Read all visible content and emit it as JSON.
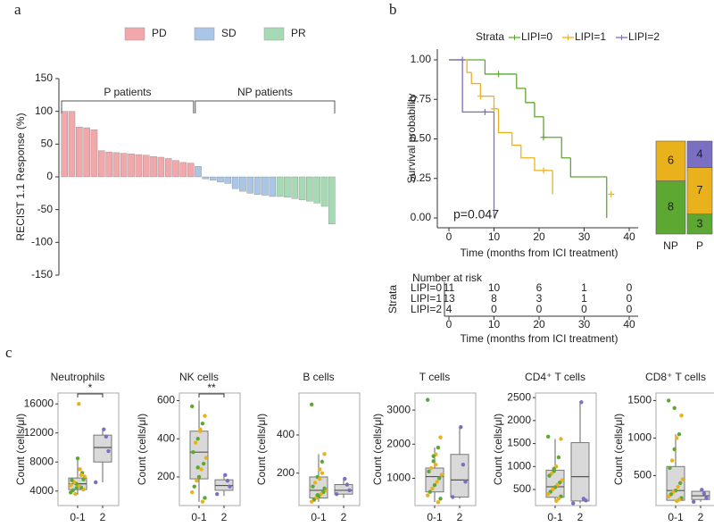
{
  "chart_data": [
    {
      "type": "bar",
      "panel_label": "a",
      "ylabel": "RECIST 1.1 Response (%)",
      "ylim": [
        -150,
        150
      ],
      "yticks": [
        -150,
        -100,
        -50,
        0,
        50,
        100,
        150
      ],
      "annotations": [
        "P patients",
        "NP patients"
      ],
      "categories": [
        null,
        null,
        null,
        null,
        null,
        null,
        null,
        null,
        null,
        null,
        null,
        null,
        null,
        null,
        null,
        null,
        null,
        null,
        null,
        null,
        null,
        null,
        null,
        null,
        null,
        null,
        null,
        null,
        null,
        null,
        null,
        null,
        null,
        null,
        null,
        null,
        null
      ],
      "series": [
        {
          "name": "PD",
          "color": "#f2a7aa",
          "values": [
            100,
            100,
            76,
            75,
            72,
            40,
            38,
            37,
            36,
            35,
            34,
            33,
            31,
            30,
            28,
            25,
            22,
            21,
            null,
            null,
            null,
            null,
            null,
            null,
            null,
            null,
            null,
            null,
            null,
            null,
            null,
            null,
            null,
            null,
            null,
            null,
            null
          ]
        },
        {
          "name": "SD",
          "color": "#a9c6e6",
          "values": [
            null,
            null,
            null,
            null,
            null,
            null,
            null,
            null,
            null,
            null,
            null,
            null,
            null,
            null,
            null,
            null,
            null,
            null,
            16,
            -3,
            -5,
            -8,
            -10,
            -18,
            -22,
            -25,
            -27,
            -28,
            -30,
            null,
            null,
            null,
            null,
            null,
            null,
            null,
            null
          ]
        },
        {
          "name": "PR",
          "color": "#a6dab4",
          "values": [
            null,
            null,
            null,
            null,
            null,
            null,
            null,
            null,
            null,
            null,
            null,
            null,
            null,
            null,
            null,
            null,
            null,
            null,
            null,
            null,
            null,
            null,
            null,
            null,
            null,
            null,
            null,
            null,
            null,
            -30,
            -31,
            -33,
            -35,
            -37,
            -40,
            -45,
            -72
          ]
        }
      ]
    },
    {
      "type": "step",
      "panel_label": "b",
      "legend_title": "Strata",
      "ylabel": "Survival probability",
      "xlabel": "Time (months from ICI treatment)",
      "annotation": "p=0.047",
      "xlim": [
        0,
        40
      ],
      "xticks": [
        0,
        10,
        20,
        30,
        40
      ],
      "ylim": [
        0,
        1
      ],
      "yticks": [
        {
          "value": 0,
          "label": "0.00"
        },
        {
          "value": 0.25,
          "label": "0.25"
        },
        {
          "value": 0.5,
          "label": "0.50"
        },
        {
          "value": 0.75,
          "label": "0.75"
        },
        {
          "value": 1,
          "label": "1.00"
        }
      ],
      "series": [
        {
          "name": "LIPI=0",
          "color": "#5da832",
          "x": [
            0,
            8,
            15,
            17,
            19,
            21,
            25,
            27,
            35
          ],
          "values": [
            1,
            0.91,
            0.82,
            0.73,
            0.64,
            0.51,
            0.38,
            0.26,
            0
          ],
          "censored_x": [
            11,
            21
          ],
          "censored_values": [
            0.91,
            0.51
          ]
        },
        {
          "name": "LIPI=1",
          "color": "#e9b21d",
          "x": [
            0,
            4,
            5,
            7,
            10,
            11,
            14,
            16,
            19,
            23
          ],
          "values": [
            1,
            0.92,
            0.85,
            0.77,
            0.69,
            0.54,
            0.46,
            0.38,
            0.3,
            0.15
          ],
          "censored_x": [
            7,
            10,
            21,
            36
          ],
          "censored_values": [
            0.77,
            0.69,
            0.3,
            0.15
          ]
        },
        {
          "name": "LIPI=2",
          "color": "#7a6fc0",
          "x": [
            0,
            3,
            10
          ],
          "values": [
            1,
            0.67,
            0
          ],
          "censored_x": [
            3,
            8
          ],
          "censored_values": [
            1,
            0.67
          ]
        }
      ],
      "risk_table": {
        "title": "Number at risk",
        "ylabel": "Strata",
        "xlabel": "Time (months from ICI treatment)",
        "rows": [
          [
            11,
            10,
            6,
            1,
            0
          ],
          [
            13,
            8,
            3,
            1,
            0
          ],
          [
            4,
            0,
            0,
            0,
            0
          ]
        ]
      }
    },
    {
      "type": "bar",
      "stacked": true,
      "categories": [
        "NP",
        "P"
      ],
      "series": [
        {
          "color": "#5da832",
          "values": [
            8,
            3
          ]
        },
        {
          "color": "#e9b21d",
          "values": [
            6,
            7
          ]
        },
        {
          "color": "#7a6fc0",
          "values": [
            null,
            4
          ]
        }
      ]
    },
    {
      "type": "box",
      "panel_label": "c",
      "title": "Neutrophils",
      "ylabel": "Count (cells/μl)",
      "ylim": [
        2000,
        17500
      ],
      "yticks": [
        4000,
        8000,
        12000,
        16000
      ],
      "significance": "*",
      "groups": [
        {
          "category": "0-1",
          "min": 3500,
          "q1": 4200,
          "median": 5000,
          "q3": 5800,
          "max": 8500,
          "points": [
            3800,
            4200,
            4500,
            4700,
            5000,
            5200,
            5500,
            6000,
            6500,
            7000,
            8500,
            3600,
            4100,
            4800,
            5600,
            6200,
            16000,
            4400
          ],
          "point_colors": [
            "#5da832",
            "#e9b21d",
            "#5da832",
            "#e9b21d",
            "#5da832",
            "#e9b21d",
            "#5da832",
            "#e9b21d",
            "#5da832",
            "#e9b21d",
            "#5da832",
            "#e9b21d",
            "#5da832",
            "#e9b21d",
            "#5da832",
            "#e9b21d",
            "#e9b21d",
            "#5da832"
          ]
        },
        {
          "category": "2",
          "min": 5200,
          "q1": 8000,
          "median": 10000,
          "q3": 11700,
          "max": 12500,
          "points": [
            5200,
            9500,
            11500,
            12500
          ],
          "point_colors": [
            "#7a6fc0",
            "#7a6fc0",
            "#7a6fc0",
            "#7a6fc0"
          ]
        }
      ]
    },
    {
      "type": "box",
      "title": "NK cells",
      "ylabel": "Count (cells/μl)",
      "ylim": [
        50,
        640
      ],
      "yticks": [
        200,
        400,
        600
      ],
      "significance": "**",
      "groups": [
        {
          "category": "0-1",
          "min": 70,
          "q1": 190,
          "median": 330,
          "q3": 440,
          "max": 600,
          "points": [
            570,
            520,
            480,
            440,
            400,
            380,
            330,
            300,
            270,
            240,
            200,
            180,
            150,
            120,
            90,
            70,
            450,
            250
          ],
          "point_colors": [
            "#5da832",
            "#e9b21d",
            "#5da832",
            "#e9b21d",
            "#5da832",
            "#e9b21d",
            "#5da832",
            "#e9b21d",
            "#5da832",
            "#e9b21d",
            "#5da832",
            "#e9b21d",
            "#5da832",
            "#e9b21d",
            "#5da832",
            "#e9b21d",
            "#e9b21d",
            "#5da832"
          ]
        },
        {
          "category": "2",
          "min": 100,
          "q1": 130,
          "median": 155,
          "q3": 185,
          "max": 210,
          "points": [
            110,
            150,
            180,
            210
          ],
          "point_colors": [
            "#7a6fc0",
            "#7a6fc0",
            "#7a6fc0",
            "#7a6fc0"
          ]
        }
      ]
    },
    {
      "type": "box",
      "title": "B cells",
      "ylabel": "Count (cells/μl)",
      "ylim": [
        30,
        620
      ],
      "yticks": [
        200,
        400
      ],
      "groups": [
        {
          "category": "0-1",
          "min": 50,
          "q1": 70,
          "median": 110,
          "q3": 180,
          "max": 300,
          "points": [
            560,
            300,
            260,
            220,
            180,
            150,
            130,
            110,
            100,
            90,
            80,
            70,
            60,
            50,
            120,
            200,
            170,
            85
          ],
          "point_colors": [
            "#5da832",
            "#e9b21d",
            "#5da832",
            "#e9b21d",
            "#5da832",
            "#e9b21d",
            "#5da832",
            "#e9b21d",
            "#5da832",
            "#e9b21d",
            "#5da832",
            "#e9b21d",
            "#5da832",
            "#e9b21d",
            "#5da832",
            "#e9b21d",
            "#e9b21d",
            "#5da832"
          ]
        },
        {
          "category": "2",
          "min": 70,
          "q1": 90,
          "median": 110,
          "q3": 140,
          "max": 170,
          "points": [
            90,
            110,
            140,
            170
          ],
          "point_colors": [
            "#7a6fc0",
            "#7a6fc0",
            "#7a6fc0",
            "#7a6fc0"
          ]
        }
      ]
    },
    {
      "type": "box",
      "title": "T cells",
      "ylabel": "Count (cells/μl)",
      "ylim": [
        200,
        3500
      ],
      "yticks": [
        1000,
        2000,
        3000
      ],
      "groups": [
        {
          "category": "0-1",
          "min": 300,
          "q1": 600,
          "median": 1050,
          "q3": 1300,
          "max": 1900,
          "points": [
            3300,
            2200,
            1900,
            1700,
            1500,
            1300,
            1200,
            1100,
            1000,
            900,
            800,
            700,
            600,
            500,
            400,
            300,
            1400,
            1650
          ],
          "point_colors": [
            "#5da832",
            "#e9b21d",
            "#5da832",
            "#e9b21d",
            "#5da832",
            "#e9b21d",
            "#5da832",
            "#e9b21d",
            "#5da832",
            "#e9b21d",
            "#5da832",
            "#e9b21d",
            "#5da832",
            "#e9b21d",
            "#5da832",
            "#e9b21d",
            "#e9b21d",
            "#5da832"
          ]
        },
        {
          "category": "2",
          "min": 400,
          "q1": 450,
          "median": 950,
          "q3": 1700,
          "max": 2500,
          "points": [
            450,
            900,
            1400,
            2500
          ],
          "point_colors": [
            "#7a6fc0",
            "#7a6fc0",
            "#7a6fc0",
            "#7a6fc0"
          ]
        }
      ]
    },
    {
      "type": "box",
      "title": "CD4⁺ T cells",
      "ylabel": "Count (cells/μl)",
      "ylim": [
        150,
        2600
      ],
      "yticks": [
        500,
        1000,
        1500,
        2000,
        2500
      ],
      "groups": [
        {
          "category": "0-1",
          "min": 250,
          "q1": 330,
          "median": 560,
          "q3": 920,
          "max": 1600,
          "points": [
            1650,
            1600,
            1200,
            1000,
            900,
            850,
            800,
            700,
            650,
            600,
            550,
            500,
            450,
            400,
            350,
            300,
            250,
            950
          ],
          "point_colors": [
            "#5da832",
            "#e9b21d",
            "#5da832",
            "#e9b21d",
            "#5da832",
            "#e9b21d",
            "#5da832",
            "#e9b21d",
            "#5da832",
            "#e9b21d",
            "#5da832",
            "#e9b21d",
            "#5da832",
            "#e9b21d",
            "#5da832",
            "#e9b21d",
            "#e9b21d",
            "#5da832"
          ]
        },
        {
          "category": "2",
          "min": 200,
          "q1": 250,
          "median": 780,
          "q3": 1520,
          "max": 2400,
          "points": [
            200,
            260,
            300,
            2400
          ],
          "point_colors": [
            "#7a6fc0",
            "#7a6fc0",
            "#7a6fc0",
            "#7a6fc0"
          ]
        }
      ]
    },
    {
      "type": "box",
      "title": "CD8⁺ T cells",
      "ylabel": "Count (cells/μl)",
      "ylim": [
        100,
        1600
      ],
      "yticks": [
        500,
        1000,
        1500
      ],
      "groups": [
        {
          "category": "0-1",
          "min": 150,
          "q1": 170,
          "median": 300,
          "q3": 620,
          "max": 1050,
          "points": [
            1500,
            1300,
            1050,
            1000,
            850,
            700,
            600,
            450,
            400,
            350,
            300,
            280,
            250,
            220,
            200,
            180,
            160,
            1400
          ],
          "point_colors": [
            "#5da832",
            "#e9b21d",
            "#5da832",
            "#e9b21d",
            "#5da832",
            "#e9b21d",
            "#5da832",
            "#e9b21d",
            "#5da832",
            "#e9b21d",
            "#5da832",
            "#e9b21d",
            "#5da832",
            "#e9b21d",
            "#5da832",
            "#e9b21d",
            "#e9b21d",
            "#5da832"
          ]
        },
        {
          "category": "2",
          "min": 150,
          "q1": 180,
          "median": 230,
          "q3": 290,
          "max": 310,
          "points": [
            150,
            200,
            260,
            310
          ],
          "point_colors": [
            "#7a6fc0",
            "#7a6fc0",
            "#7a6fc0",
            "#7a6fc0"
          ]
        }
      ]
    }
  ]
}
